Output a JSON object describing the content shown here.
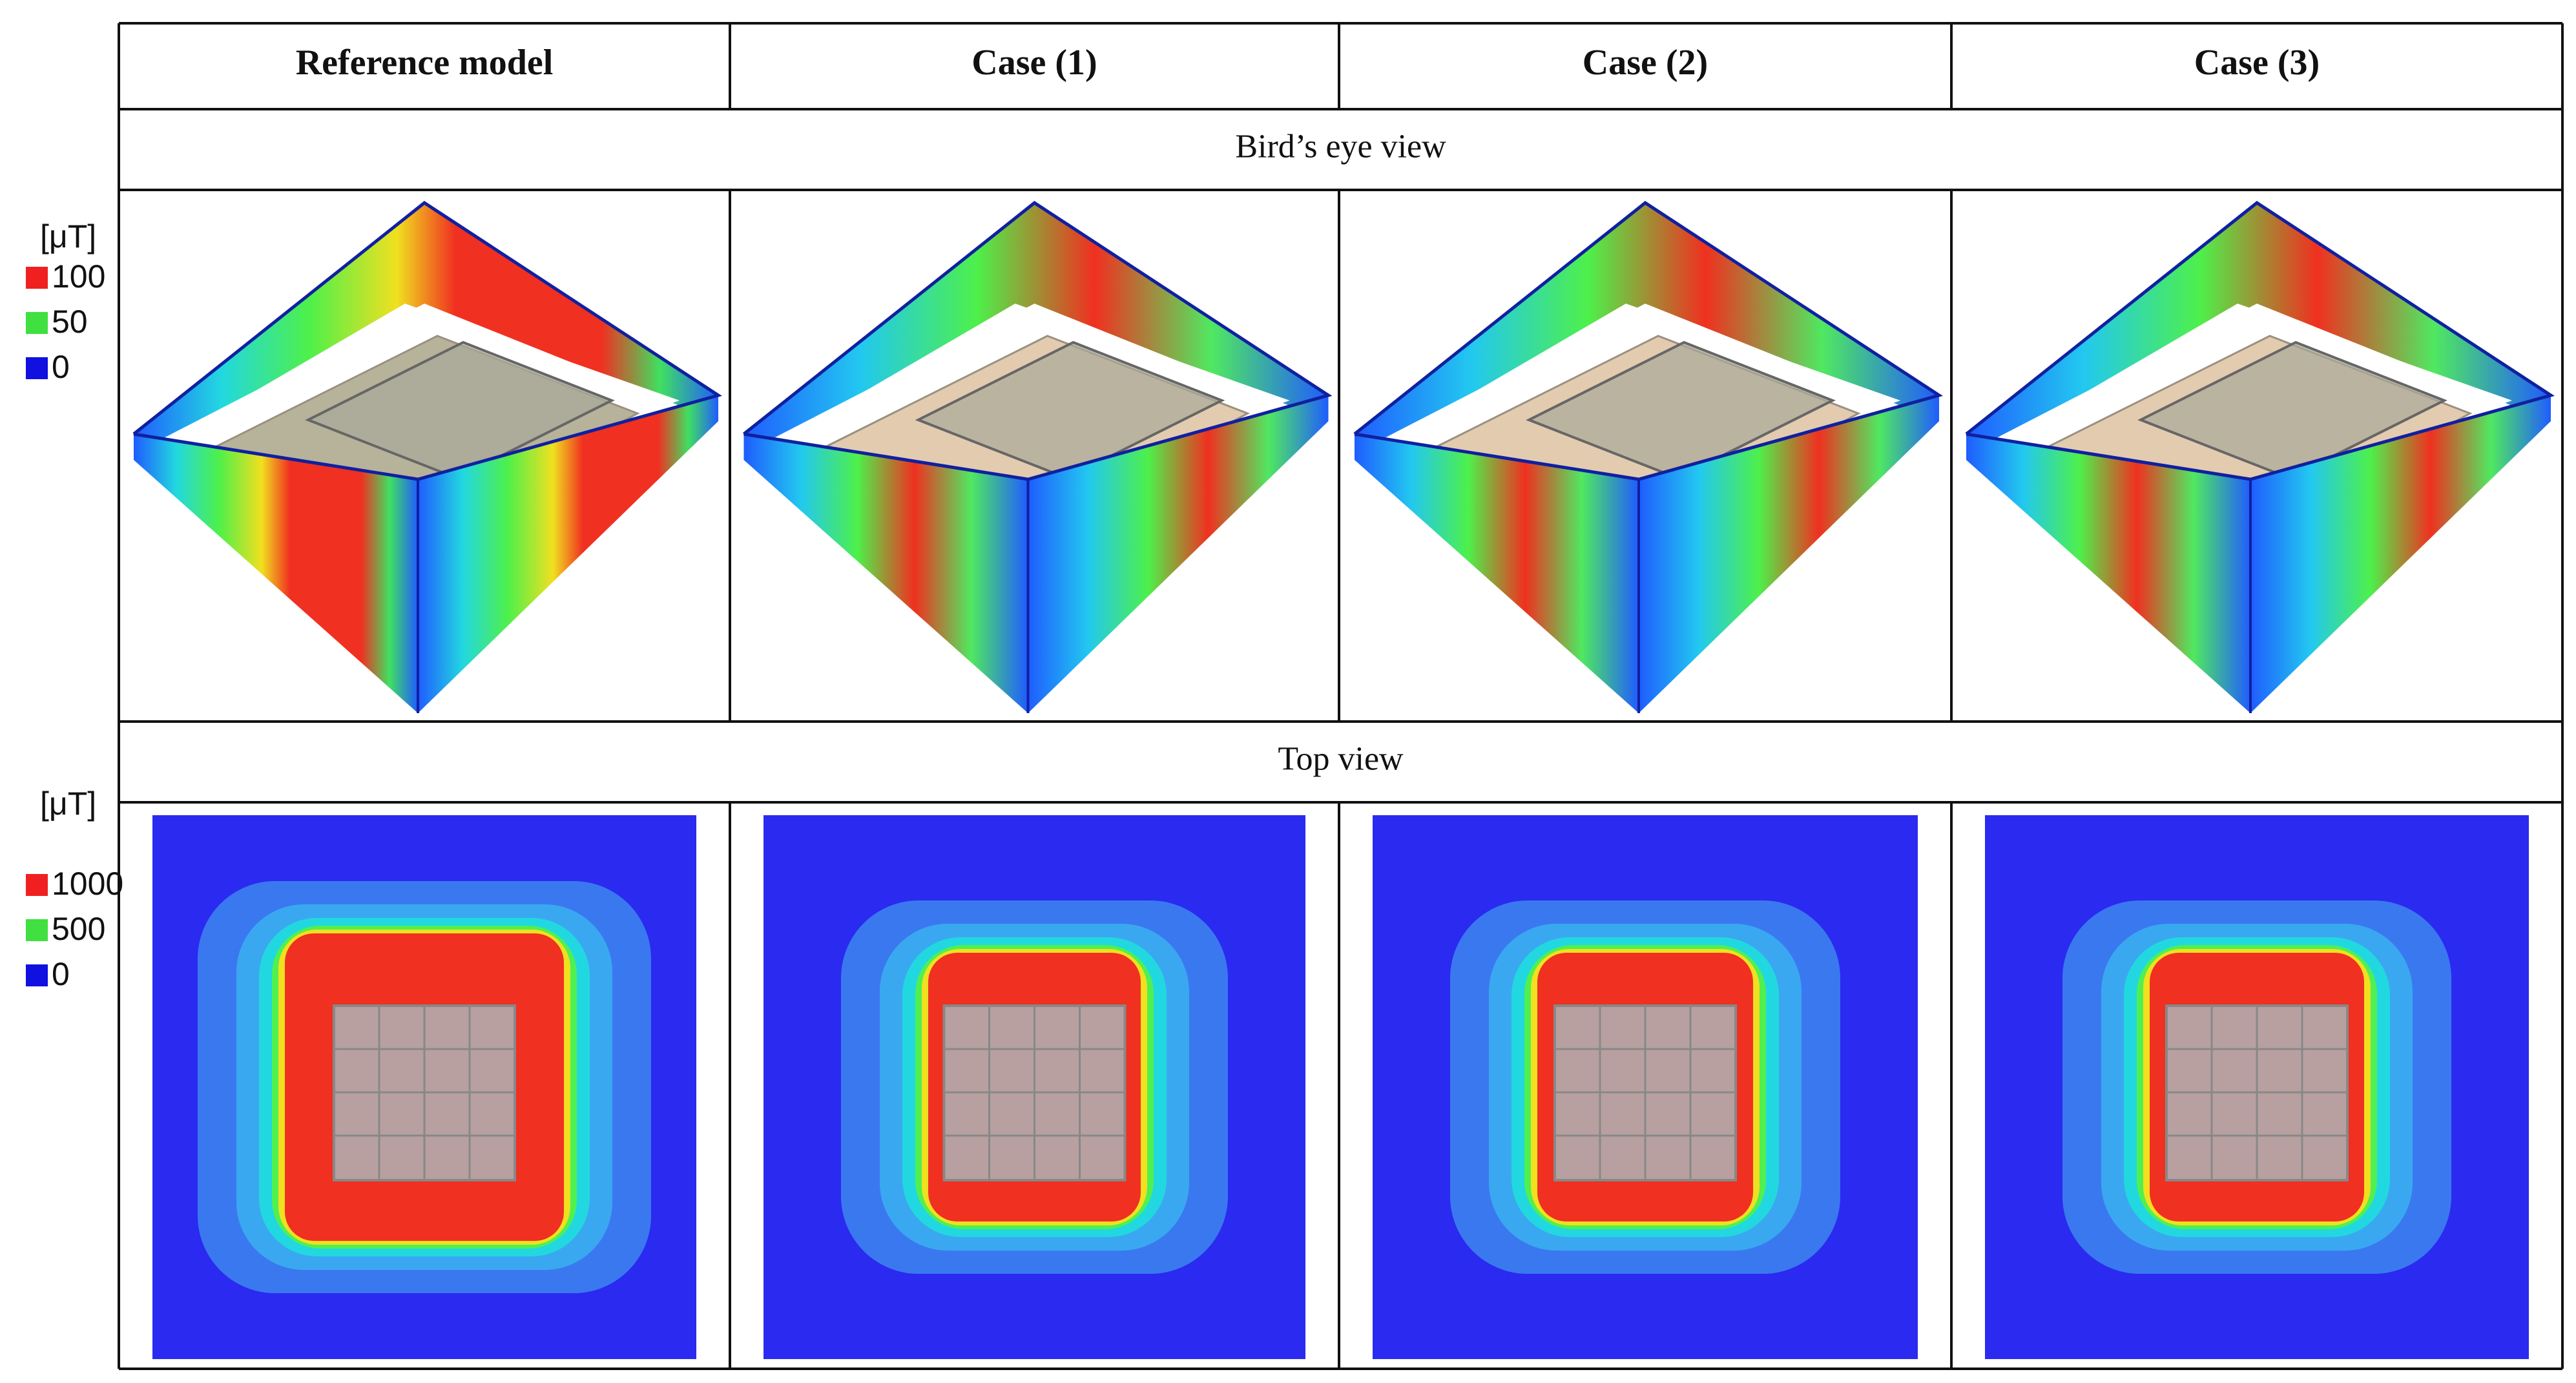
{
  "table": {
    "headers": [
      "Reference model",
      "Case (1)",
      "Case (2)",
      "Case (3)"
    ],
    "sections": [
      "Bird’s eye view",
      "Top view"
    ]
  },
  "legends": [
    {
      "unit": "[μT]",
      "labels": [
        "100",
        "50",
        "0"
      ]
    },
    {
      "unit": "[μT]",
      "labels": [
        "1000",
        "500",
        "0"
      ]
    }
  ]
}
